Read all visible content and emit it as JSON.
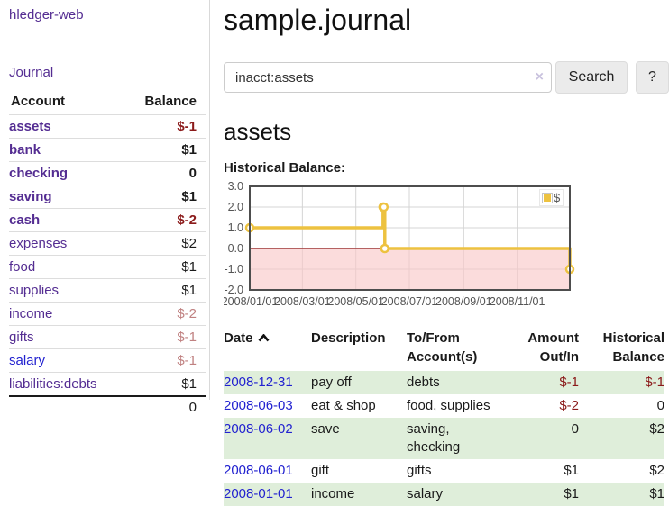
{
  "app": {
    "title": "hledger-web"
  },
  "colors": {
    "link_purple": "#542d92",
    "link_blue": "#2222d0",
    "negative_strong": "#8b1a1a",
    "negative_light": "#c08181",
    "row_green": "#dfeeda",
    "chart_line": "#EDC240"
  },
  "sidebar": {
    "journal_link": "Journal",
    "accounts": {
      "col_account": "Account",
      "col_balance": "Balance",
      "rows": [
        {
          "name": "assets",
          "balance": "$-1"
        },
        {
          "name": "bank",
          "balance": "$1"
        },
        {
          "name": "checking",
          "balance": "0"
        },
        {
          "name": "saving",
          "balance": "$1"
        },
        {
          "name": "cash",
          "balance": "$-2"
        },
        {
          "name": "expenses",
          "balance": "$2"
        },
        {
          "name": "food",
          "balance": "$1"
        },
        {
          "name": "supplies",
          "balance": "$1"
        },
        {
          "name": "income",
          "balance": "$-2"
        },
        {
          "name": "gifts",
          "balance": "$-1"
        },
        {
          "name": "salary",
          "balance": "$-1"
        },
        {
          "name": "liabilities:debts",
          "balance": "$1"
        }
      ],
      "total": "0"
    }
  },
  "main": {
    "title": "sample.journal",
    "search": {
      "value": "inacct:assets",
      "clear_icon": "×",
      "search_button": "Search",
      "help_button": "?"
    },
    "account_heading": "assets",
    "section_label": "Historical Balance:",
    "register": {
      "col_date": "Date",
      "col_description": "Description",
      "col_accounts": "To/From Account(s)",
      "col_amount": "Amount Out/In",
      "col_balance": "Historical Balance",
      "rows": [
        {
          "date": "2008-12-31",
          "description": "pay off",
          "accounts": "debts",
          "amount": "$-1",
          "balance": "$-1"
        },
        {
          "date": "2008-06-03",
          "description": "eat & shop",
          "accounts": "food, supplies",
          "amount": "$-2",
          "balance": "0"
        },
        {
          "date": "2008-06-02",
          "description": "save",
          "accounts": "saving, checking",
          "amount": "0",
          "balance": "$2"
        },
        {
          "date": "2008-06-01",
          "description": "gift",
          "accounts": "gifts",
          "amount": "$1",
          "balance": "$2"
        },
        {
          "date": "2008-01-01",
          "description": "income",
          "accounts": "salary",
          "amount": "$1",
          "balance": "$1"
        }
      ]
    }
  },
  "chart_data": {
    "type": "line",
    "step": true,
    "title": "Historical Balance:",
    "x_range": [
      "2008-01-01",
      "2008-12-31"
    ],
    "ylim": [
      -2,
      3
    ],
    "y_ticks": [
      3,
      2,
      1,
      0,
      -1,
      -2
    ],
    "x_ticks": [
      {
        "label": "2008/01/01",
        "date": "2008-01-01"
      },
      {
        "label": "2008/03/01",
        "date": "2008-03-01"
      },
      {
        "label": "2008/05/01",
        "date": "2008-05-01"
      },
      {
        "label": "2008/07/01",
        "date": "2008-07-01"
      },
      {
        "label": "2008/09/01",
        "date": "2008-09-01"
      },
      {
        "label": "2008/11/01",
        "date": "2008-11-01"
      }
    ],
    "series": [
      {
        "name": "$",
        "color": "#EDC240",
        "points": [
          [
            "2008-01-01",
            1
          ],
          [
            "2008-06-01",
            2
          ],
          [
            "2008-06-02",
            2
          ],
          [
            "2008-06-03",
            0
          ],
          [
            "2008-12-31",
            -1
          ]
        ]
      }
    ],
    "legend": {
      "label": "$",
      "position": "top-right"
    },
    "grid": true,
    "negative_region_color": "#f9c6c6",
    "zero_line_color": "#8b1a1a"
  }
}
